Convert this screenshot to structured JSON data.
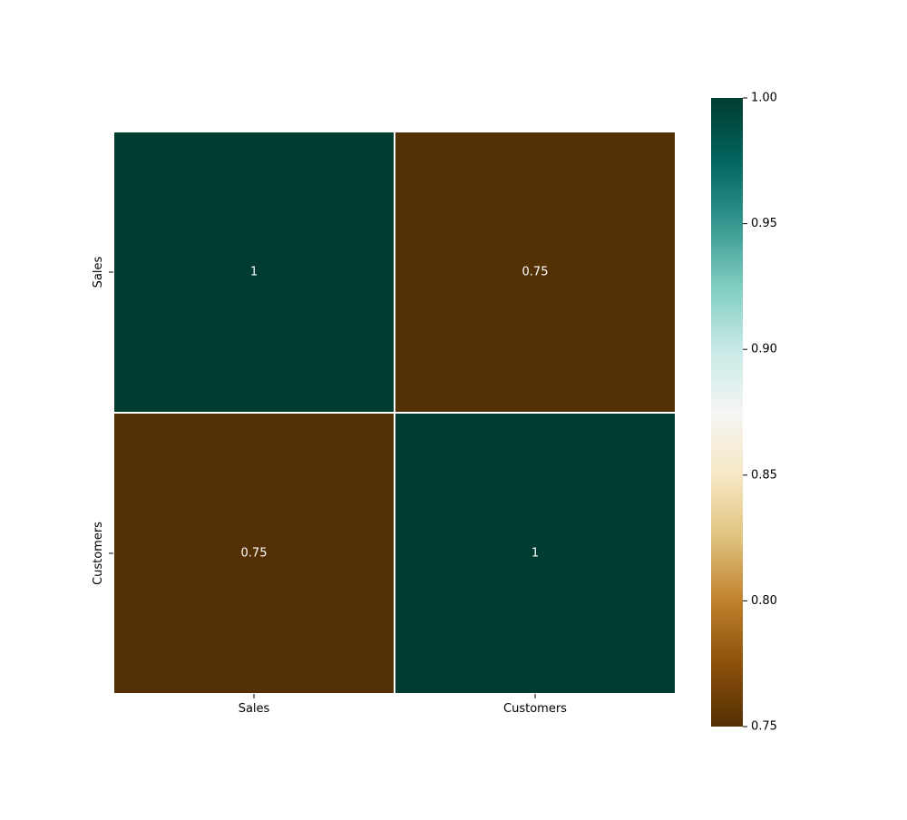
{
  "chart_data": {
    "type": "heatmap",
    "title": "",
    "xlabel": "",
    "ylabel": "",
    "x_categories": [
      "Sales",
      "Customers"
    ],
    "y_categories": [
      "Sales",
      "Customers"
    ],
    "values": [
      [
        1,
        0.75
      ],
      [
        0.75,
        1
      ]
    ],
    "cell_labels": [
      [
        "1",
        "0.75"
      ],
      [
        "0.75",
        "1"
      ]
    ],
    "colormap": "BrBG",
    "colorbar": {
      "min": 0.75,
      "max": 1.0,
      "ticks": [
        0.75,
        0.8,
        0.85,
        0.9,
        0.95,
        1.0
      ],
      "tick_labels": [
        "0.75",
        "0.80",
        "0.85",
        "0.90",
        "0.95",
        "1.00"
      ],
      "placement": "right"
    },
    "colors": {
      "low": "#543005",
      "high": "#003c30",
      "cell_border": "#ffffff",
      "annotation_text": "#ffffff"
    }
  }
}
